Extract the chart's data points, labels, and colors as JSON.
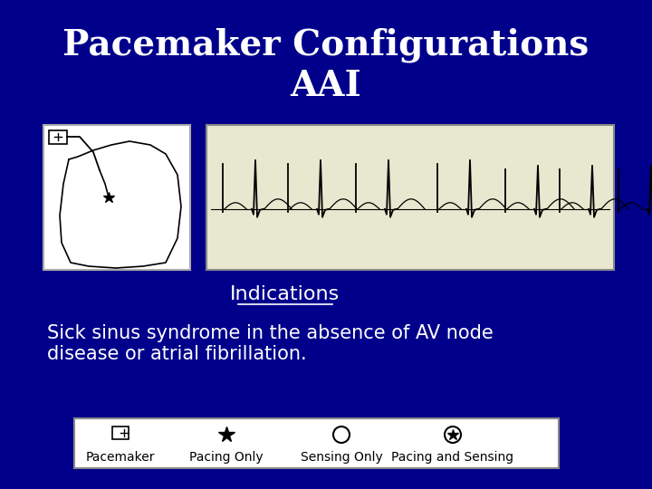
{
  "title_line1": "Pacemaker Configurations",
  "title_line2": "AAI",
  "title_color": "#FFFFFF",
  "title_fontsize": 28,
  "background_color": "#00008B",
  "indications_label": "Indications",
  "indications_color": "#FFFFFF",
  "indications_fontsize": 16,
  "body_text": "Sick sinus syndrome in the absence of AV node\ndisease or atrial fibrillation.",
  "body_color": "#FFFFFF",
  "body_fontsize": 15,
  "legend_items": [
    "Pacemaker",
    "Pacing Only",
    "Sensing Only",
    "Pacing and Sensing"
  ],
  "legend_color": "#000000",
  "legend_bg": "#FFFFFF",
  "legend_fontsize": 10,
  "ecg_bg": "#E8E8D0",
  "diagram_bg": "#FFFFFF",
  "grid_color": "#CCCCBB",
  "ecg_line_color": "#000000"
}
